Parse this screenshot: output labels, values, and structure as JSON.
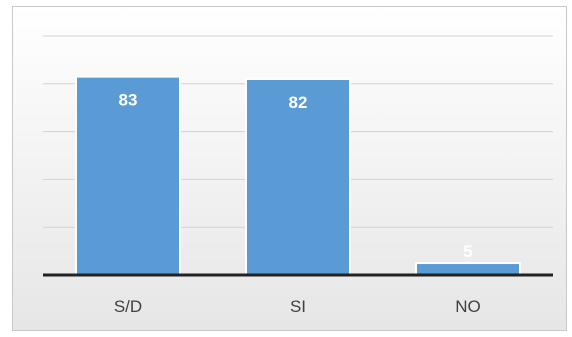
{
  "chart_data": {
    "type": "bar",
    "title": "",
    "xlabel": "",
    "ylabel": "",
    "categories": [
      "S/D",
      "SI",
      "NO"
    ],
    "values": [
      83,
      82,
      5
    ],
    "data_labels": [
      "83",
      "82",
      "5"
    ],
    "ylim": [
      0,
      100
    ],
    "y_gridlines": [
      20,
      40,
      60,
      80,
      100
    ],
    "grid": true,
    "legend": "none",
    "bar_color": "#5b9bd5",
    "label_color": "#ffffff"
  }
}
